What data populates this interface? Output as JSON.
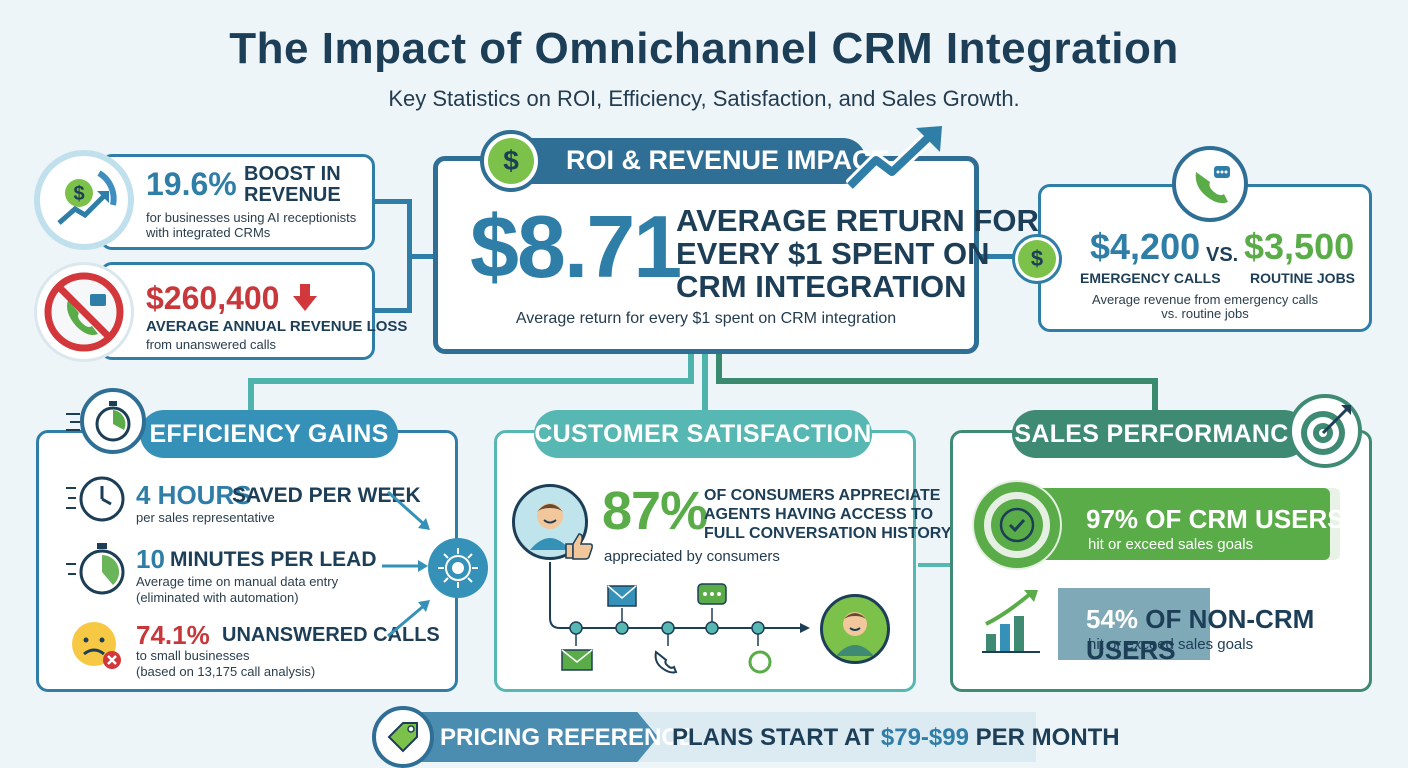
{
  "header": {
    "title": "The Impact of Omnichannel CRM Integration",
    "subtitle": "Key Statistics on ROI, Efficiency, Satisfaction, and Sales Growth."
  },
  "revenue_boost": {
    "value": "19.6%",
    "headline": "BOOST IN REVENUE",
    "line1": "for businesses using AI receptionists",
    "line2": "with integrated CRMs"
  },
  "revenue_loss": {
    "value": "$260,400",
    "headline": "AVERAGE ANNUAL REVENUE LOSS",
    "detail": "from unanswered calls"
  },
  "roi": {
    "tab_label": "ROI & REVENUE IMPACT",
    "value": "$8.71",
    "headline_line1": "AVERAGE RETURN FOR",
    "headline_line2": "EVERY $1 SPENT ON",
    "headline_line3": "CRM INTEGRATION",
    "caption": "Average return for every $1 spent on CRM integration"
  },
  "calls_compare": {
    "emergency_value": "$4,200",
    "vs": "VS.",
    "routine_value": "$3,500",
    "emergency_label": "EMERGENCY CALLS",
    "routine_label": "ROUTINE JOBS",
    "caption_line1": "Average revenue from emergency calls",
    "caption_line2": "vs. routine jobs"
  },
  "efficiency": {
    "tab_label": "EFFICIENCY GAINS",
    "items": [
      {
        "value": "4 HOURS",
        "headline": "SAVED PER WEEK",
        "line1": "per sales representative",
        "line2": ""
      },
      {
        "value": "10",
        "headline": "MINUTES PER LEAD",
        "line1": "Average time on manual data entry",
        "line2": "(eliminated with automation)"
      },
      {
        "value": "74.1%",
        "headline": "UNANSWERED CALLS",
        "line1": "to small businesses",
        "line2": "(based on 13,175 call analysis)"
      }
    ]
  },
  "satisfaction": {
    "tab_label": "CUSTOMER SATISFACTION",
    "value": "87%",
    "headline_line1": "OF CONSUMERS APPRECIATE",
    "headline_line2": "AGENTS HAVING ACCESS TO",
    "headline_line3": "FULL CONVERSATION HISTORY",
    "caption": "appreciated by consumers"
  },
  "sales": {
    "tab_label": "SALES PERFORMANCE",
    "crm": {
      "value": "97%",
      "headline": "OF CRM USERS",
      "detail": "hit or exceed sales goals",
      "fraction": 0.97
    },
    "non_crm": {
      "value": "54%",
      "headline": "OF NON-CRM USERS",
      "detail": "hit or exceed sales goals",
      "fraction": 0.54
    }
  },
  "pricing": {
    "label": "PRICING REFERENCE",
    "prefix": "PLANS START AT",
    "price": "$79-$99",
    "suffix": "PER MONTH"
  },
  "colors": {
    "navy": "#1d3e57",
    "blue": "#2f7ea8",
    "teal": "#57b7b3",
    "green": "#5aac48",
    "red": "#c8373a",
    "dark_green": "#3e8a73"
  }
}
